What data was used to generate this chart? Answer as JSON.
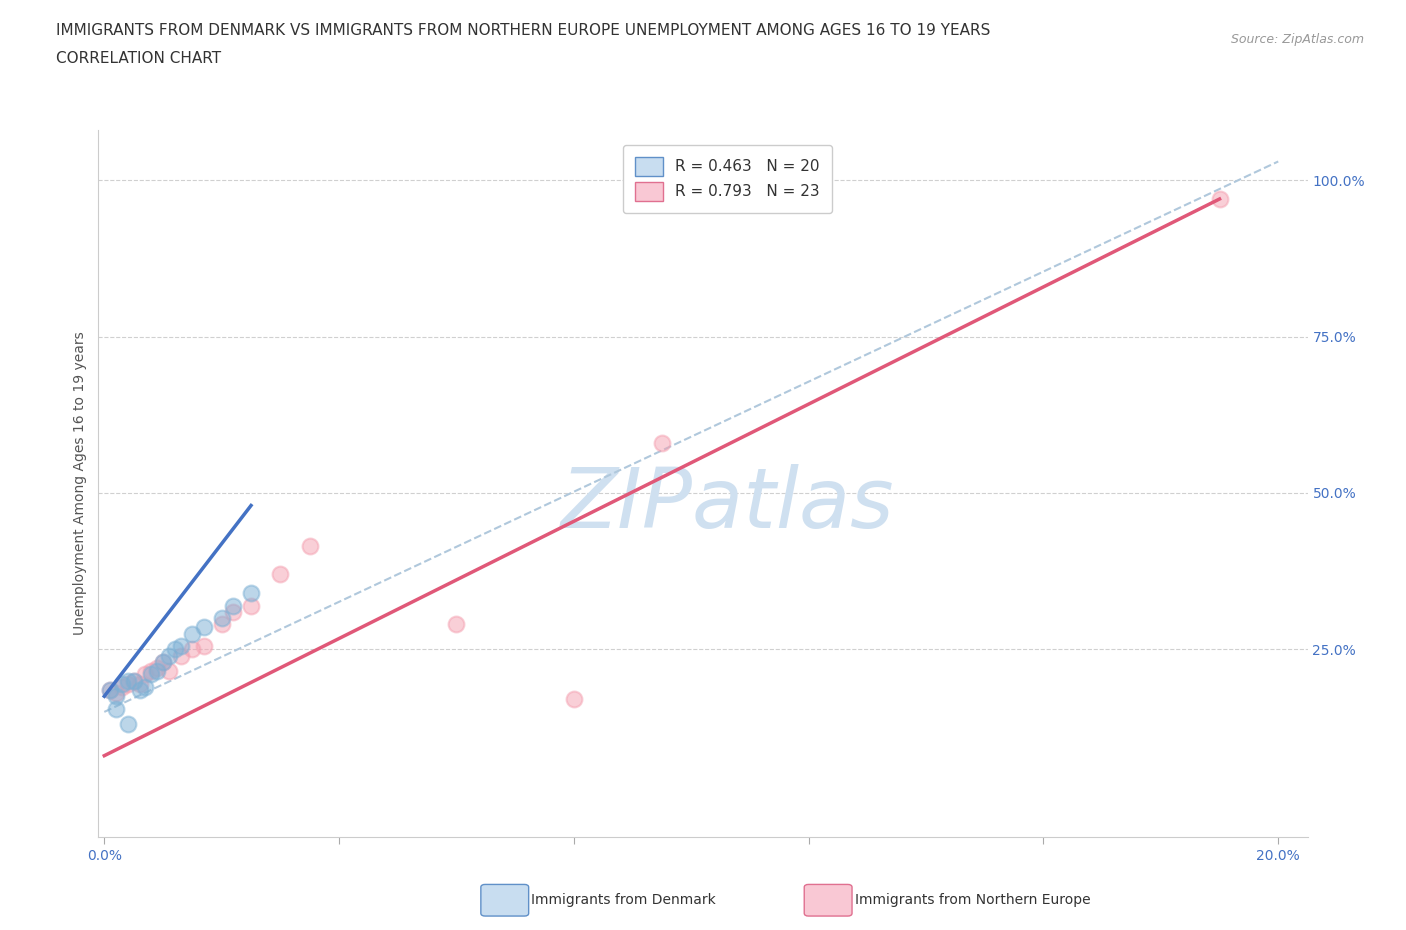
{
  "title_line1": "IMMIGRANTS FROM DENMARK VS IMMIGRANTS FROM NORTHERN EUROPE UNEMPLOYMENT AMONG AGES 16 TO 19 YEARS",
  "title_line2": "CORRELATION CHART",
  "source": "Source: ZipAtlas.com",
  "ylabel": "Unemployment Among Ages 16 to 19 years",
  "xlim": [
    -0.001,
    0.205
  ],
  "ylim": [
    -0.05,
    1.08
  ],
  "xtick_positions": [
    0.0,
    0.04,
    0.08,
    0.12,
    0.16,
    0.2
  ],
  "xticklabels": [
    "0.0%",
    "",
    "",
    "",
    "",
    "20.0%"
  ],
  "yticks_right": [
    0.25,
    0.5,
    0.75,
    1.0
  ],
  "ytick_right_labels": [
    "25.0%",
    "50.0%",
    "75.0%",
    "100.0%"
  ],
  "denmark_color": "#7bafd4",
  "northern_color": "#f4a0b0",
  "denmark_line_color": "#4472c4",
  "northern_line_color": "#e05878",
  "diagonal_color": "#b0c8dc",
  "denmark_R": 0.463,
  "denmark_N": 20,
  "northern_R": 0.793,
  "northern_N": 23,
  "denmark_scatter_x": [
    0.001,
    0.002,
    0.003,
    0.004,
    0.005,
    0.006,
    0.007,
    0.008,
    0.009,
    0.01,
    0.011,
    0.012,
    0.013,
    0.015,
    0.017,
    0.02,
    0.022,
    0.025,
    0.002,
    0.004
  ],
  "denmark_scatter_y": [
    0.185,
    0.175,
    0.195,
    0.2,
    0.2,
    0.185,
    0.19,
    0.21,
    0.215,
    0.23,
    0.24,
    0.25,
    0.255,
    0.275,
    0.285,
    0.3,
    0.32,
    0.34,
    0.155,
    0.13
  ],
  "northern_scatter_x": [
    0.001,
    0.002,
    0.003,
    0.004,
    0.005,
    0.006,
    0.007,
    0.008,
    0.009,
    0.01,
    0.011,
    0.013,
    0.015,
    0.017,
    0.02,
    0.022,
    0.025,
    0.03,
    0.035,
    0.06,
    0.08,
    0.095,
    0.19
  ],
  "northern_scatter_y": [
    0.185,
    0.18,
    0.19,
    0.195,
    0.2,
    0.195,
    0.21,
    0.215,
    0.22,
    0.23,
    0.215,
    0.24,
    0.25,
    0.255,
    0.29,
    0.31,
    0.32,
    0.37,
    0.415,
    0.29,
    0.17,
    0.58,
    0.97
  ],
  "denmark_line_x": [
    0.0,
    0.025
  ],
  "denmark_line_y": [
    0.175,
    0.48
  ],
  "northern_line_x": [
    0.0,
    0.19
  ],
  "northern_line_y": [
    0.08,
    0.97
  ],
  "diagonal_line_x": [
    0.0,
    0.2
  ],
  "diagonal_line_y": [
    0.15,
    1.03
  ],
  "background_color": "#ffffff",
  "grid_color": "#d0d0d0",
  "title_fontsize": 11,
  "axis_label_fontsize": 10,
  "tick_fontsize": 10,
  "legend_fontsize": 11,
  "source_fontsize": 9,
  "watermark_text": "ZIPatlas",
  "watermark_color": "#cfe0f0",
  "watermark_fontsize": 60,
  "right_tick_color": "#4472c4",
  "bottom_tick_color": "#4472c4"
}
